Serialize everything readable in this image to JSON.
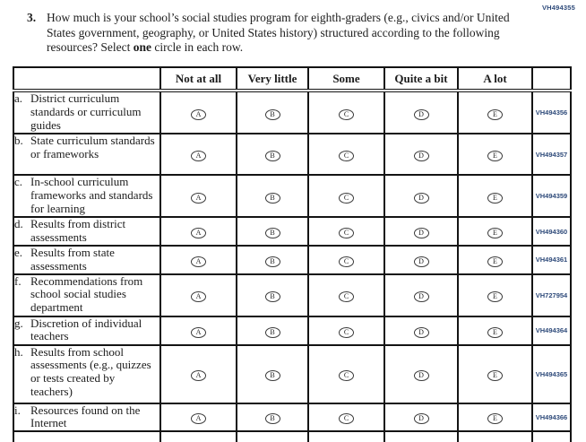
{
  "page": {
    "top_code": "VH494355"
  },
  "question": {
    "number": "3.",
    "text_before_bold": "How much is your school’s social studies program for eighth-graders (e.g., civics and/or United States government, geography, or United States history) structured according to the following resources? Select ",
    "bold_word": "one",
    "text_after_bold": " circle in each row."
  },
  "table": {
    "headers": [
      "Not at all",
      "Very little",
      "Some",
      "Quite a bit",
      "A lot"
    ],
    "option_letters": [
      "A",
      "B",
      "C",
      "D",
      "E"
    ],
    "rows": [
      {
        "item_letter": "a.",
        "label": "District curriculum standards or curriculum guides",
        "code": "VH494356"
      },
      {
        "item_letter": "b.",
        "label": "State curriculum standards or frameworks",
        "code": "VH494357"
      },
      {
        "item_letter": "c.",
        "label": "In-school curriculum frameworks and standards for learning",
        "code": "VH494359"
      },
      {
        "item_letter": "d.",
        "label": "Results from district assessments",
        "code": "VH494360"
      },
      {
        "item_letter": "e.",
        "label": "Results from state assessments",
        "code": "VH494361"
      },
      {
        "item_letter": "f.",
        "label": "Recommendations from school social studies department",
        "code": "VH727954"
      },
      {
        "item_letter": "g.",
        "label": "Discretion of individual teachers",
        "code": "VH494364"
      },
      {
        "item_letter": "h.",
        "label": "Results from school assessments (e.g., quizzes or tests created by teachers)",
        "code": "VH494365"
      },
      {
        "item_letter": "i.",
        "label": "Resources found on the Internet",
        "code": "VH494366"
      }
    ]
  },
  "colors": {
    "body_text": "#1c1c1c",
    "code_text": "#2e4a7a",
    "border": "#141414"
  }
}
